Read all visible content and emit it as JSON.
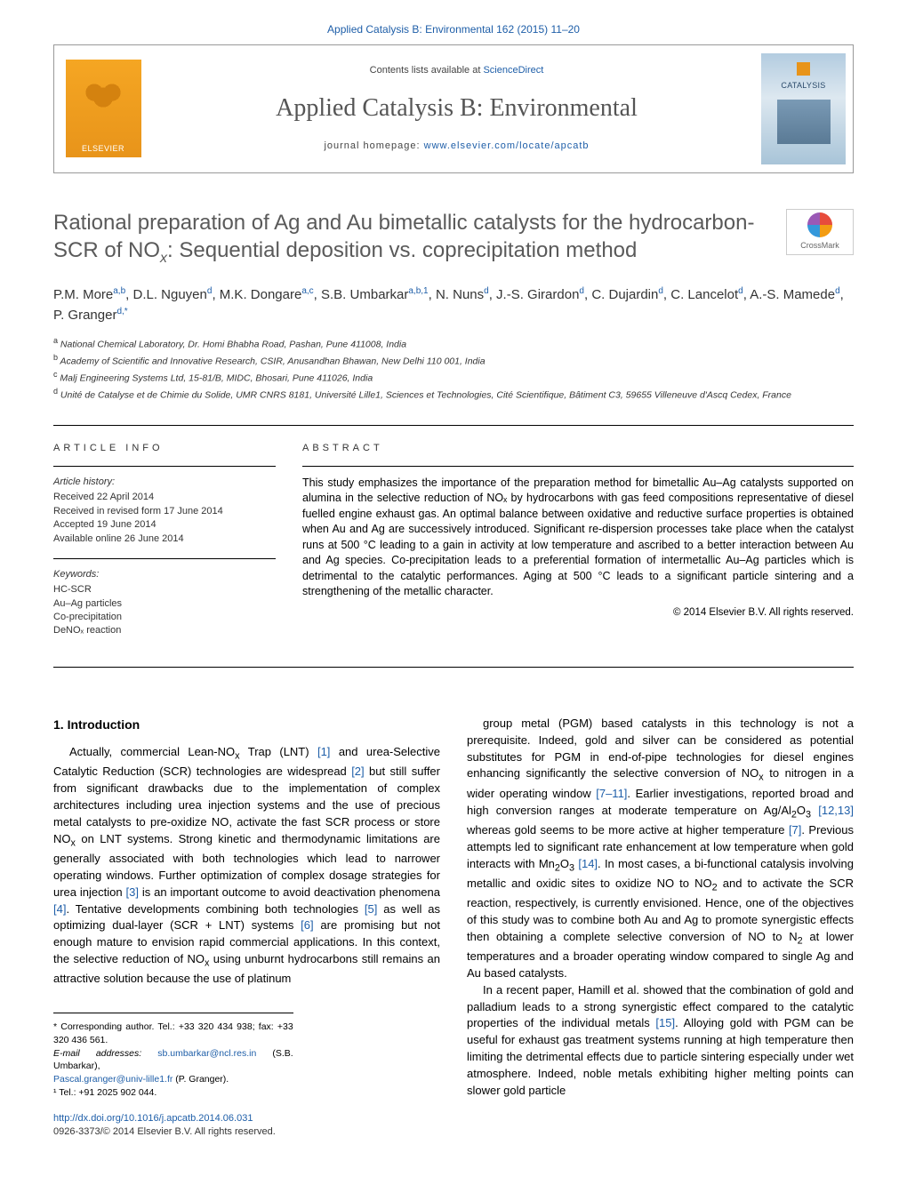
{
  "header": {
    "top_link_text": "Applied Catalysis B: Environmental 162 (2015) 11–20",
    "contents_prefix": "Contents lists available at ",
    "contents_link": "ScienceDirect",
    "journal_title": "Applied Catalysis B: Environmental",
    "homepage_prefix": "journal homepage: ",
    "homepage_link": "www.elsevier.com/locate/apcatb",
    "elsevier_label": "ELSEVIER",
    "cover_label": "CATALYSIS",
    "crossmark_label": "CrossMark"
  },
  "article": {
    "title_html": "Rational preparation of Ag and Au bimetallic catalysts for the hydrocarbon-SCR of NO<sub><i>x</i></sub>: Sequential deposition vs. coprecipitation method",
    "authors_html": "P.M. More<sup>a,b</sup>, D.L. Nguyen<sup>d</sup>, M.K. Dongare<sup>a,c</sup>, S.B. Umbarkar<sup>a,b,1</sup>, N. Nuns<sup>d</sup>, J.-S. Girardon<sup>d</sup>, C. Dujardin<sup>d</sup>, C. Lancelot<sup>d</sup>, A.-S. Mamede<sup>d</sup>, P. Granger<sup>d,*</sup>",
    "affiliations": [
      {
        "sup": "a",
        "text": "National Chemical Laboratory, Dr. Homi Bhabha Road, Pashan, Pune 411008, India"
      },
      {
        "sup": "b",
        "text": "Academy of Scientific and Innovative Research, CSIR, Anusandhan Bhawan, New Delhi 110 001, India"
      },
      {
        "sup": "c",
        "text": "Malj Engineering Systems Ltd, 15-81/B, MIDC, Bhosari, Pune 411026, India"
      },
      {
        "sup": "d",
        "text": "Unité de Catalyse et de Chimie du Solide, UMR CNRS 8181, Université Lille1, Sciences et Technologies, Cité Scientifique, Bâtiment C3, 59655 Villeneuve d'Ascq Cedex, France"
      }
    ]
  },
  "info": {
    "article_info_label": "ARTICLE INFO",
    "history_label": "Article history:",
    "history_lines": [
      "Received 22 April 2014",
      "Received in revised form 17 June 2014",
      "Accepted 19 June 2014",
      "Available online 26 June 2014"
    ],
    "keywords_label": "Keywords:",
    "keywords": [
      "HC-SCR",
      "Au–Ag particles",
      "Co-precipitation",
      "DeNOₓ reaction"
    ]
  },
  "abstract": {
    "label": "ABSTRACT",
    "text": "This study emphasizes the importance of the preparation method for bimetallic Au–Ag catalysts supported on alumina in the selective reduction of NOₓ by hydrocarbons with gas feed compositions representative of diesel fuelled engine exhaust gas. An optimal balance between oxidative and reductive surface properties is obtained when Au and Ag are successively introduced. Significant re-dispersion processes take place when the catalyst runs at 500 °C leading to a gain in activity at low temperature and ascribed to a better interaction between Au and Ag species. Co-precipitation leads to a preferential formation of intermetallic Au–Ag particles which is detrimental to the catalytic performances. Aging at 500 °C leads to a significant particle sintering and a strengthening of the metallic character.",
    "copyright": "© 2014 Elsevier B.V. All rights reserved."
  },
  "body": {
    "heading": "1.  Introduction",
    "col1_p1_html": "Actually, commercial Lean-NO<sub>x</sub> Trap (LNT) <span class=\"ref-link\">[1]</span> and urea-Selective Catalytic Reduction (SCR) technologies are widespread <span class=\"ref-link\">[2]</span> but still suffer from significant drawbacks due to the implementation of complex architectures including urea injection systems and the use of precious metal catalysts to pre-oxidize NO, activate the fast SCR process or store NO<sub>x</sub> on LNT systems. Strong kinetic and thermodynamic limitations are generally associated with both technologies which lead to narrower operating windows. Further optimization of complex dosage strategies for urea injection <span class=\"ref-link\">[3]</span> is an important outcome to avoid deactivation phenomena <span class=\"ref-link\">[4]</span>. Tentative developments combining both technologies <span class=\"ref-link\">[5]</span> as well as optimizing dual-layer (SCR + LNT) systems <span class=\"ref-link\">[6]</span> are promising but not enough mature to envision rapid commercial applications. In this context, the selective reduction of NO<sub>x</sub> using unburnt hydrocarbons still remains an attractive solution because the use of platinum",
    "col2_p1_html": "group metal (PGM) based catalysts in this technology is not a prerequisite. Indeed, gold and silver can be considered as potential substitutes for PGM in end-of-pipe technologies for diesel engines enhancing significantly the selective conversion of NO<sub>x</sub> to nitrogen in a wider operating window <span class=\"ref-link\">[7–11]</span>. Earlier investigations, reported broad and high conversion ranges at moderate temperature on Ag/Al<sub>2</sub>O<sub>3</sub> <span class=\"ref-link\">[12,13]</span> whereas gold seems to be more active at higher temperature <span class=\"ref-link\">[7]</span>. Previous attempts led to significant rate enhancement at low temperature when gold interacts with Mn<sub>2</sub>O<sub>3</sub> <span class=\"ref-link\">[14]</span>. In most cases, a bi-functional catalysis involving metallic and oxidic sites to oxidize NO to NO<sub>2</sub> and to activate the SCR reaction, respectively, is currently envisioned. Hence, one of the objectives of this study was to combine both Au and Ag to promote synergistic effects then obtaining a complete selective conversion of NO to N<sub>2</sub> at lower temperatures and a broader operating window compared to single Ag and Au based catalysts.",
    "col2_p2_html": "In a recent paper, Hamill et al. showed that the combination of gold and palladium leads to a strong synergistic effect compared to the catalytic properties of the individual metals <span class=\"ref-link\">[15]</span>. Alloying gold with PGM can be useful for exhaust gas treatment systems running at high temperature then limiting the detrimental effects due to particle sintering especially under wet atmosphere. Indeed, noble metals exhibiting higher melting points can slower gold particle"
  },
  "footnotes": {
    "corr_line": "* Corresponding author. Tel.: +33 320 434 938; fax: +33 320 436 561.",
    "email_label": "E-mail addresses: ",
    "email1": "sb.umbarkar@ncl.res.in",
    "email1_name": " (S.B. Umbarkar),",
    "email2": "Pascal.granger@univ-lille1.fr",
    "email2_name": " (P. Granger).",
    "tel_line": "¹ Tel.: +91 2025 902 044."
  },
  "footer": {
    "doi": "http://dx.doi.org/10.1016/j.apcatb.2014.06.031",
    "issn_line": "0926-3373/© 2014 Elsevier B.V. All rights reserved."
  },
  "colors": {
    "link": "#1e5ea8",
    "title_gray": "#5a5a5a",
    "elsevier_orange": "#e8941a"
  }
}
